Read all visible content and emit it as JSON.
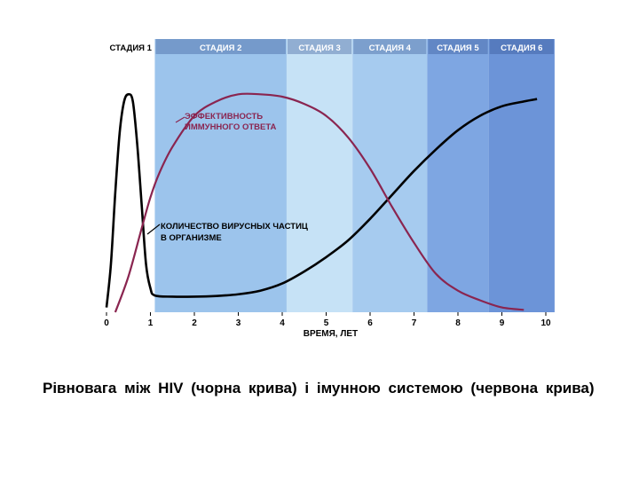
{
  "chart_data": {
    "type": "line",
    "x_range": [
      0,
      10
    ],
    "xlabel": "ВРЕМЯ, ЛЕТ",
    "x_ticks": [
      "0",
      "1",
      "2",
      "3",
      "4",
      "5",
      "6",
      "7",
      "8",
      "9",
      "10"
    ],
    "stages": [
      {
        "label": "СТАДИЯ 1",
        "from": 0,
        "to": 1.1,
        "color": "#ffffff"
      },
      {
        "label": "СТАДИЯ 2",
        "from": 1.1,
        "to": 4.1,
        "color": "#9cc4ec"
      },
      {
        "label": "СТАДИЯ 3",
        "from": 4.1,
        "to": 5.6,
        "color": "#c6e2f6"
      },
      {
        "label": "СТАДИЯ 4",
        "from": 5.6,
        "to": 7.3,
        "color": "#a6cbef"
      },
      {
        "label": "СТАДИЯ 5",
        "from": 7.3,
        "to": 8.7,
        "color": "#7ea6e2"
      },
      {
        "label": "СТАДИЯ 6",
        "from": 8.7,
        "to": 10.2,
        "color": "#6c94d8"
      }
    ],
    "grid": false,
    "series": [
      {
        "name": "КОЛИЧЕСТВО ВИРУСНЫХ ЧАСТИЦ В ОРГАНИЗМЕ",
        "color": "#000000",
        "x": [
          0,
          0.1,
          0.2,
          0.3,
          0.4,
          0.5,
          0.6,
          0.7,
          0.8,
          0.9,
          1.0,
          1.1,
          1.5,
          2,
          2.5,
          3,
          3.5,
          4,
          4.5,
          5,
          5.5,
          6,
          6.5,
          7,
          7.5,
          8,
          8.5,
          9,
          9.5,
          9.8
        ],
        "values": [
          0.02,
          0.2,
          0.5,
          0.75,
          0.88,
          0.91,
          0.88,
          0.7,
          0.45,
          0.2,
          0.1,
          0.07,
          0.065,
          0.065,
          0.068,
          0.075,
          0.09,
          0.12,
          0.17,
          0.23,
          0.3,
          0.39,
          0.49,
          0.59,
          0.68,
          0.76,
          0.82,
          0.86,
          0.88,
          0.89
        ]
      },
      {
        "name": "ЭФФЕКТИВНОСТЬ ИММУННОГО ОТВЕТА",
        "color": "#8a2550",
        "x": [
          0.2,
          0.5,
          0.8,
          1.0,
          1.2,
          1.5,
          2.0,
          2.5,
          3.0,
          3.5,
          4.0,
          4.5,
          5.0,
          5.5,
          6.0,
          6.5,
          7.0,
          7.5,
          8.0,
          8.5,
          9.0,
          9.5
        ],
        "values": [
          0.0,
          0.15,
          0.35,
          0.48,
          0.58,
          0.69,
          0.82,
          0.88,
          0.91,
          0.91,
          0.9,
          0.87,
          0.82,
          0.73,
          0.6,
          0.44,
          0.29,
          0.16,
          0.09,
          0.05,
          0.02,
          0.01
        ]
      }
    ]
  },
  "caption": "Рівновага між HIV (чорна крива) і імунною системою (червона крива)"
}
